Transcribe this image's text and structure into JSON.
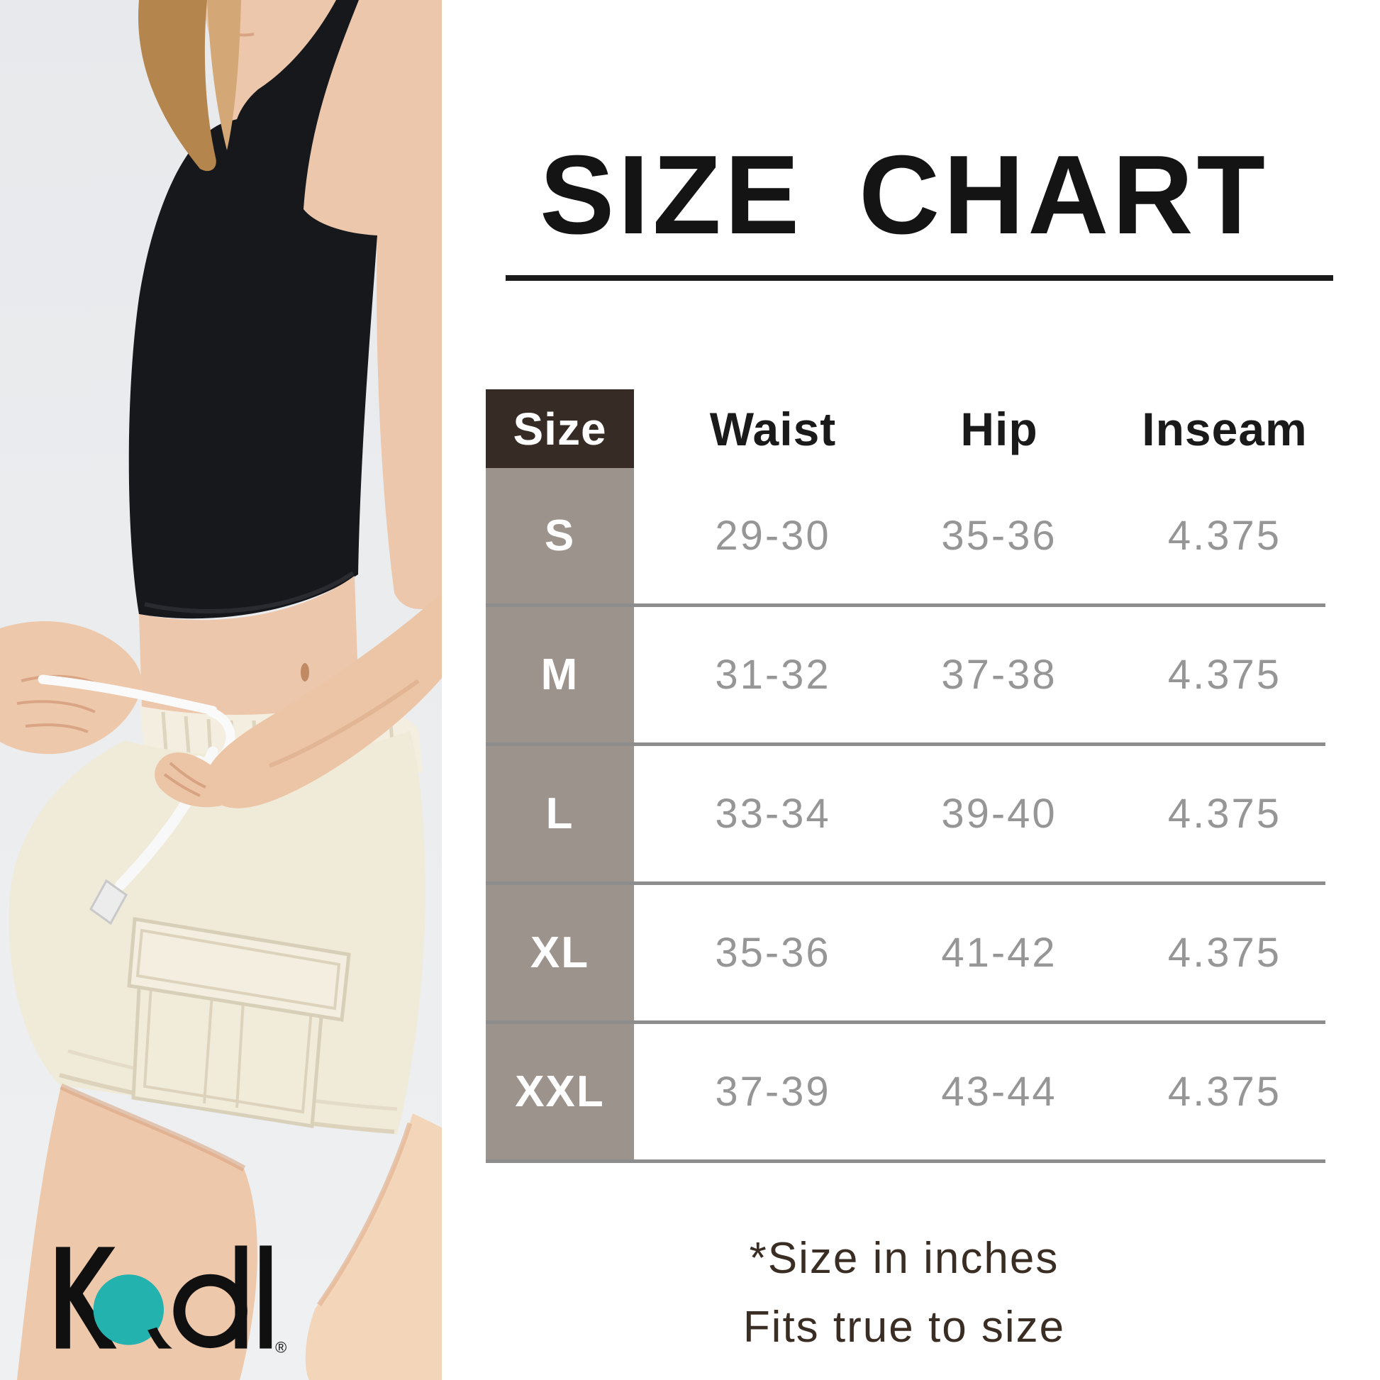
{
  "title": {
    "text": "SIZE CHART"
  },
  "table": {
    "columns": [
      "Size",
      "Waist",
      "Hip",
      "Inseam"
    ],
    "rows": [
      {
        "size": "S",
        "waist": "29-30",
        "hip": "35-36",
        "inseam": "4.375"
      },
      {
        "size": "M",
        "waist": "31-32",
        "hip": "37-38",
        "inseam": "4.375"
      },
      {
        "size": "L",
        "waist": "33-34",
        "hip": "39-40",
        "inseam": "4.375"
      },
      {
        "size": "XL",
        "waist": "35-36",
        "hip": "41-42",
        "inseam": "4.375"
      },
      {
        "size": "XXL",
        "waist": "37-39",
        "hip": "43-44",
        "inseam": "4.375"
      }
    ]
  },
  "footnote": {
    "line1": "*Size in inches",
    "line2": "Fits true to size"
  },
  "logo": {
    "text": "Kadi",
    "registered": "®"
  },
  "colors": {
    "header_cell_bg": "#372c25",
    "size_column_bg": "#9c938c",
    "divider": "#8d8d8d",
    "value_text": "#969696",
    "header_text": "#1a1a1a",
    "title_text": "#141414",
    "footnote_text": "#3a2d23",
    "logo_teal": "#23b2ae",
    "photo_background": "#e9ebee",
    "top_black": "#17181b",
    "shorts_cream": "#f0ead8",
    "skin": "#ecc7ab"
  },
  "chart_data": {
    "type": "table",
    "title": "SIZE CHART",
    "columns": [
      "Size",
      "Waist",
      "Hip",
      "Inseam"
    ],
    "rows": [
      [
        "S",
        "29-30",
        "35-36",
        "4.375"
      ],
      [
        "M",
        "31-32",
        "37-38",
        "4.375"
      ],
      [
        "L",
        "33-34",
        "39-40",
        "4.375"
      ],
      [
        "XL",
        "35-36",
        "41-42",
        "4.375"
      ],
      [
        "XXL",
        "37-39",
        "43-44",
        "4.375"
      ]
    ],
    "units": "inches",
    "notes": [
      "*Size in inches",
      "Fits true to size"
    ]
  }
}
